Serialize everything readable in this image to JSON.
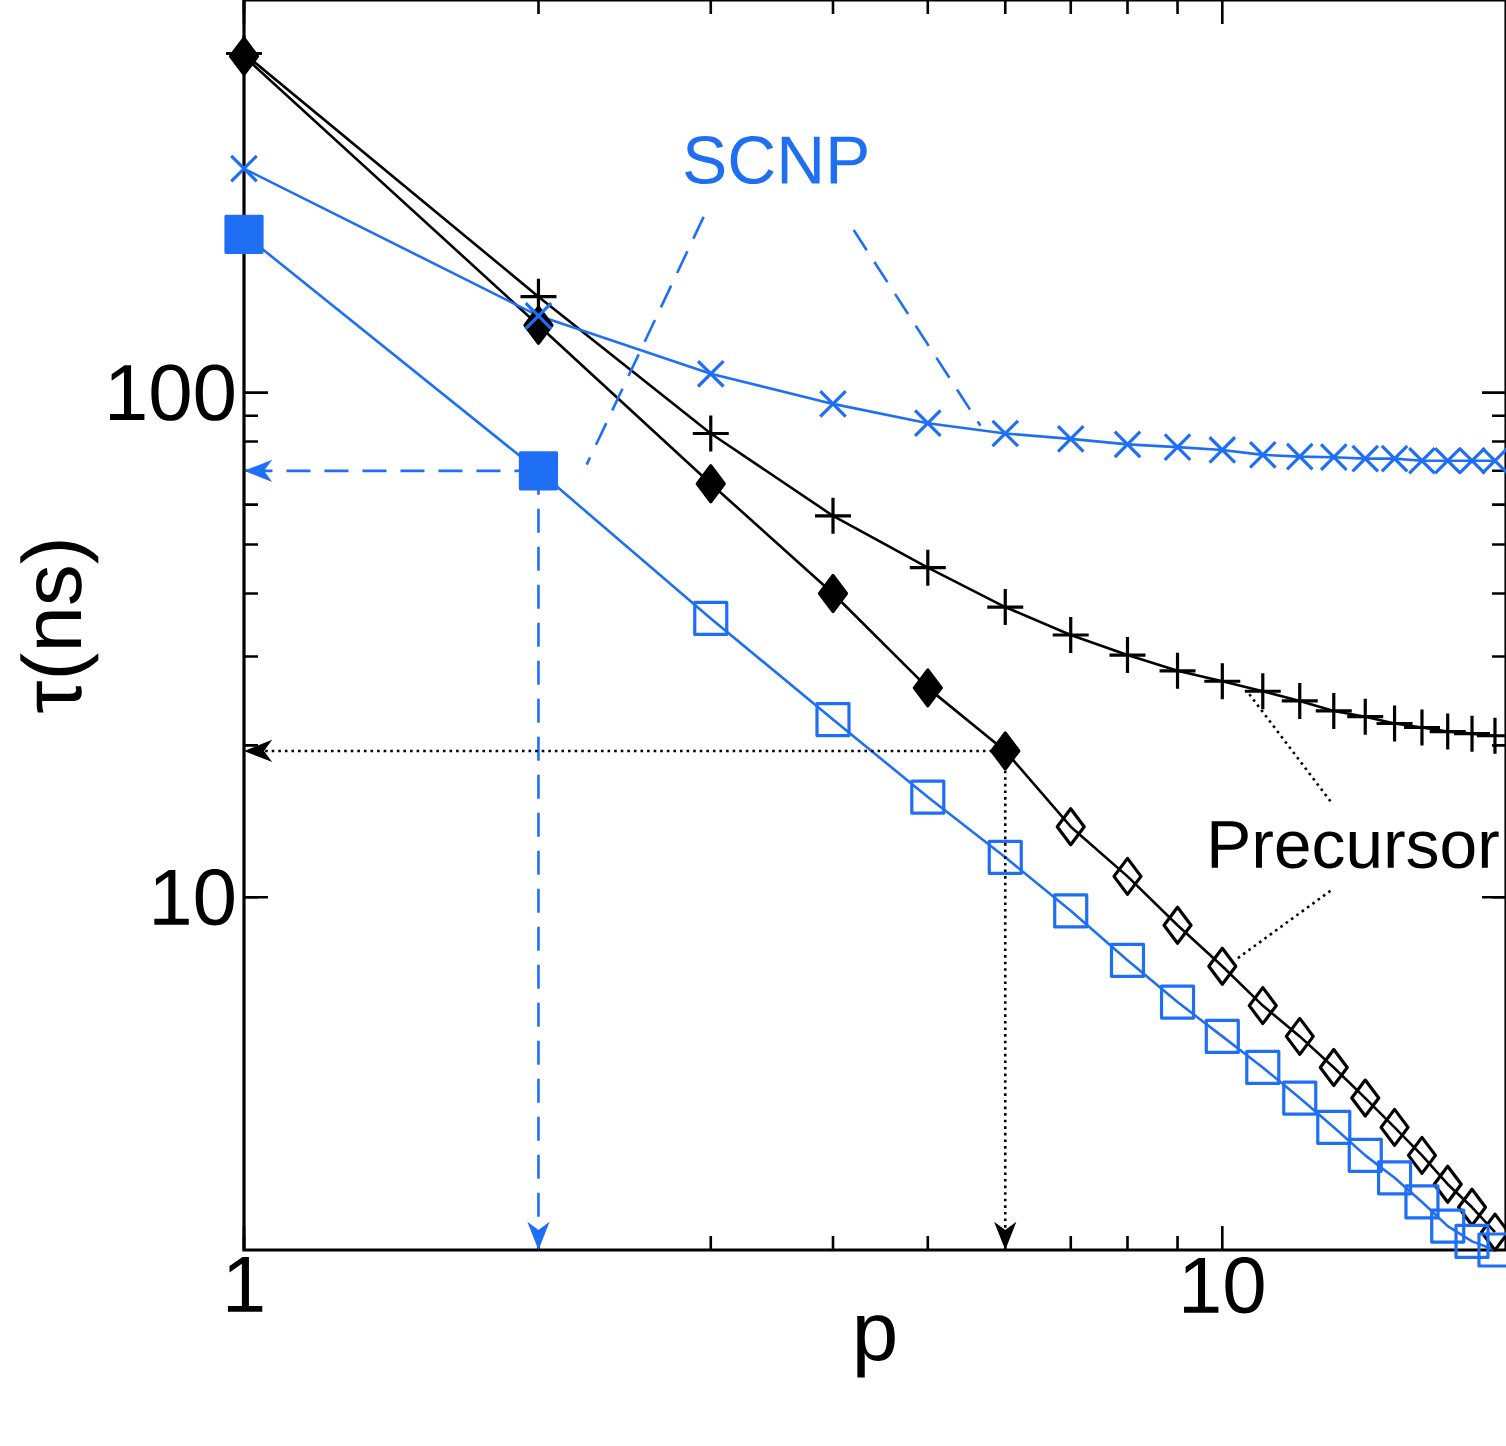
{
  "chart_data": {
    "type": "line",
    "xlabel": "p",
    "ylabel": "τ(ns)",
    "log": "xy",
    "grid": false,
    "line_style": "solid",
    "xlim": [
      1,
      19.5
    ],
    "ylim": [
      2,
      600
    ],
    "xticks": [
      1,
      10
    ],
    "yticks": [
      10,
      100
    ],
    "annotations": [
      {
        "text": "SCNP",
        "x": 5.66,
        "y": 86
      },
      {
        "text": "Precursor",
        "x": 10.6,
        "y": 25.6
      }
    ],
    "series": [
      {
        "color": "#000000",
        "marker": "diamond",
        "x": [
          1,
          2,
          3,
          4,
          5,
          6
        ],
        "values": [
          464,
          136,
          66,
          40,
          26,
          19.5
        ]
      },
      {
        "color": "#000000",
        "marker": "diamond",
        "x": [
          6,
          7,
          8,
          9,
          10,
          11,
          12,
          13,
          14,
          15,
          16,
          17,
          18,
          19
        ],
        "values": [
          19.5,
          13.8,
          11.0,
          8.8,
          7.3,
          6.1,
          5.3,
          4.6,
          4.0,
          3.5,
          3.08,
          2.7,
          2.43,
          2.17
        ]
      },
      {
        "color": "#000000",
        "marker": "plus",
        "x": [
          1,
          2,
          3,
          4,
          5,
          6,
          7,
          8,
          9,
          10,
          11,
          12,
          13,
          14,
          15,
          16,
          17,
          18,
          19
        ],
        "values": [
          470,
          155,
          83,
          57,
          45,
          37.6,
          33.1,
          30.2,
          28.1,
          26.8,
          25.6,
          24.5,
          23.4,
          22.8,
          22.1,
          21.7,
          21.3,
          21.1,
          20.9
        ]
      },
      {
        "color": "#1f6ff5",
        "marker": "square",
        "x": [
          1,
          2
        ],
        "values": [
          206,
          70
        ]
      },
      {
        "color": "#1f6ff5",
        "marker": "square",
        "x": [
          2,
          3,
          4,
          5,
          6,
          7,
          8,
          9,
          10,
          11,
          12,
          13,
          14,
          15,
          16,
          17,
          18,
          19
        ],
        "values": [
          70,
          35.7,
          22.5,
          15.8,
          12.0,
          9.4,
          7.5,
          6.2,
          5.3,
          4.6,
          4.0,
          3.5,
          3.08,
          2.78,
          2.49,
          2.23,
          2.08,
          2.0
        ]
      },
      {
        "color": "#1f6ff5",
        "marker": "cross",
        "x": [
          1,
          2,
          3,
          4,
          5,
          6,
          7,
          8,
          9,
          10,
          11,
          12,
          13,
          14,
          15,
          16,
          17,
          18,
          19
        ],
        "values": [
          278,
          142,
          109,
          95,
          87,
          83,
          81,
          79,
          78,
          77,
          75.3,
          74.7,
          74.5,
          74,
          74,
          73.3,
          73.3,
          73.3,
          73.3
        ]
      }
    ]
  }
}
